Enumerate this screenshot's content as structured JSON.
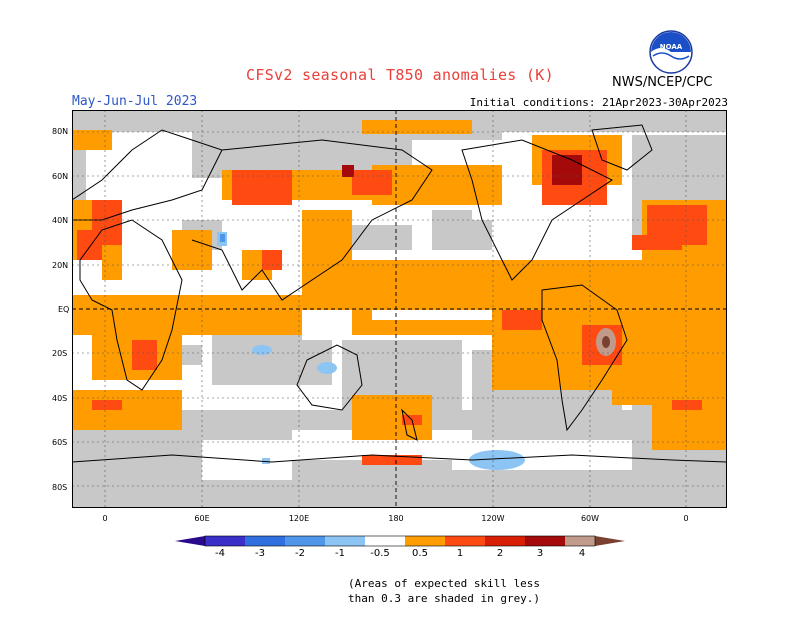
{
  "header": {
    "title": "CFSv2 seasonal T850 anomalies (K)",
    "period": "May-Jun-Jul 2023",
    "initial_conditions": "Initial conditions: 21Apr2023-30Apr2023",
    "agency": "NWS/NCEP/CPC",
    "logo_text": "NOAA"
  },
  "map": {
    "lat_labels": [
      "80N",
      "60N",
      "40N",
      "20N",
      "EQ",
      "20S",
      "40S",
      "60S",
      "80S"
    ],
    "lon_labels": [
      "0",
      "60E",
      "120E",
      "180",
      "120W",
      "60W",
      "0"
    ]
  },
  "colorbar": {
    "labels": [
      "-4",
      "-3",
      "-2",
      "-1",
      "-0.5",
      "0.5",
      "1",
      "2",
      "3",
      "4"
    ],
    "colors": {
      "lt_m4": "#2a0a8c",
      "m4_m3": "#3a2fc8",
      "m3_m2": "#2f6fe0",
      "m2_m1": "#4f96ea",
      "m1_m05": "#8cc4f4",
      "neutral": "#ffffff",
      "p05_p1": "#ff9c00",
      "p1_p2": "#ff4a12",
      "p2_p3": "#d81e05",
      "p3_p4": "#a40a0a",
      "p4_p5": "#c09a8a",
      "gt_p5": "#7a4030",
      "low_skill": "#c8c8c8"
    }
  },
  "note": {
    "line1": "(Areas of expected skill less",
    "line2": "than 0.3 are shaded in grey.)"
  }
}
